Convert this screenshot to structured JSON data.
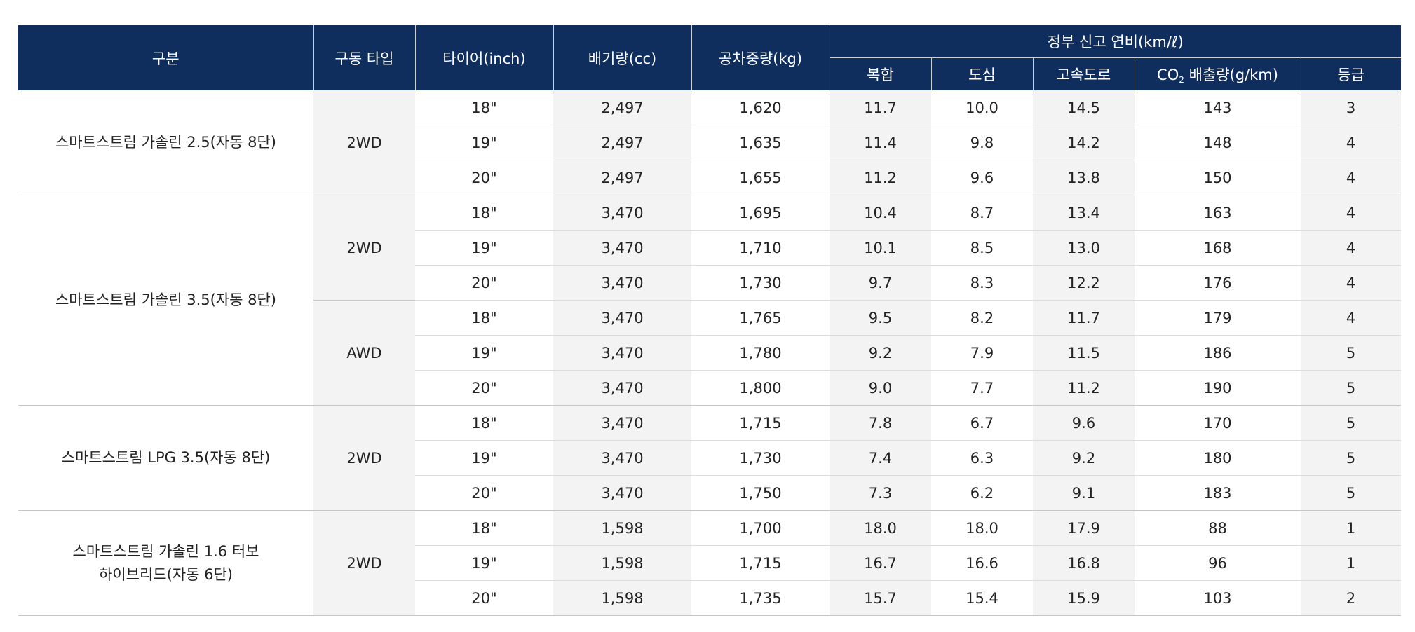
{
  "headers": {
    "category": "구분",
    "drive": "구동 타입",
    "tire": "타이어(inch)",
    "displacement": "배기량(cc)",
    "weight": "공차중량(kg)",
    "fuel_group": "정부 신고 연비(km/ℓ)",
    "combined": "복합",
    "city": "도심",
    "highway": "고속도로",
    "co2_prefix": "CO",
    "co2_sub": "2",
    "co2_suffix": " 배출량(g/km)",
    "grade": "등급"
  },
  "groups": [
    {
      "model": "스마트스트림 가솔린 2.5(자동 8단)",
      "drives": [
        {
          "drive": "2WD",
          "rows": [
            {
              "tire": "18\"",
              "cc": "2,497",
              "kg": "1,620",
              "combined": "11.7",
              "city": "10.0",
              "highway": "14.5",
              "co2": "143",
              "grade": "3"
            },
            {
              "tire": "19\"",
              "cc": "2,497",
              "kg": "1,635",
              "combined": "11.4",
              "city": "9.8",
              "highway": "14.2",
              "co2": "148",
              "grade": "4"
            },
            {
              "tire": "20\"",
              "cc": "2,497",
              "kg": "1,655",
              "combined": "11.2",
              "city": "9.6",
              "highway": "13.8",
              "co2": "150",
              "grade": "4"
            }
          ]
        }
      ]
    },
    {
      "model": "스마트스트림 가솔린 3.5(자동 8단)",
      "drives": [
        {
          "drive": "2WD",
          "rows": [
            {
              "tire": "18\"",
              "cc": "3,470",
              "kg": "1,695",
              "combined": "10.4",
              "city": "8.7",
              "highway": "13.4",
              "co2": "163",
              "grade": "4"
            },
            {
              "tire": "19\"",
              "cc": "3,470",
              "kg": "1,710",
              "combined": "10.1",
              "city": "8.5",
              "highway": "13.0",
              "co2": "168",
              "grade": "4"
            },
            {
              "tire": "20\"",
              "cc": "3,470",
              "kg": "1,730",
              "combined": "9.7",
              "city": "8.3",
              "highway": "12.2",
              "co2": "176",
              "grade": "4"
            }
          ]
        },
        {
          "drive": "AWD",
          "rows": [
            {
              "tire": "18\"",
              "cc": "3,470",
              "kg": "1,765",
              "combined": "9.5",
              "city": "8.2",
              "highway": "11.7",
              "co2": "179",
              "grade": "4"
            },
            {
              "tire": "19\"",
              "cc": "3,470",
              "kg": "1,780",
              "combined": "9.2",
              "city": "7.9",
              "highway": "11.5",
              "co2": "186",
              "grade": "5"
            },
            {
              "tire": "20\"",
              "cc": "3,470",
              "kg": "1,800",
              "combined": "9.0",
              "city": "7.7",
              "highway": "11.2",
              "co2": "190",
              "grade": "5"
            }
          ]
        }
      ]
    },
    {
      "model": "스마트스트림 LPG 3.5(자동 8단)",
      "drives": [
        {
          "drive": "2WD",
          "rows": [
            {
              "tire": "18\"",
              "cc": "3,470",
              "kg": "1,715",
              "combined": "7.8",
              "city": "6.7",
              "highway": "9.6",
              "co2": "170",
              "grade": "5"
            },
            {
              "tire": "19\"",
              "cc": "3,470",
              "kg": "1,730",
              "combined": "7.4",
              "city": "6.3",
              "highway": "9.2",
              "co2": "180",
              "grade": "5"
            },
            {
              "tire": "20\"",
              "cc": "3,470",
              "kg": "1,750",
              "combined": "7.3",
              "city": "6.2",
              "highway": "9.1",
              "co2": "183",
              "grade": "5"
            }
          ]
        }
      ]
    },
    {
      "model": "스마트스트림 가솔린 1.6 터보\n하이브리드(자동 6단)",
      "drives": [
        {
          "drive": "2WD",
          "rows": [
            {
              "tire": "18\"",
              "cc": "1,598",
              "kg": "1,700",
              "combined": "18.0",
              "city": "18.0",
              "highway": "17.9",
              "co2": "88",
              "grade": "1"
            },
            {
              "tire": "19\"",
              "cc": "1,598",
              "kg": "1,715",
              "combined": "16.7",
              "city": "16.6",
              "highway": "16.8",
              "co2": "96",
              "grade": "1"
            },
            {
              "tire": "20\"",
              "cc": "1,598",
              "kg": "1,735",
              "combined": "15.7",
              "city": "15.4",
              "highway": "15.9",
              "co2": "103",
              "grade": "2"
            }
          ]
        }
      ]
    }
  ]
}
